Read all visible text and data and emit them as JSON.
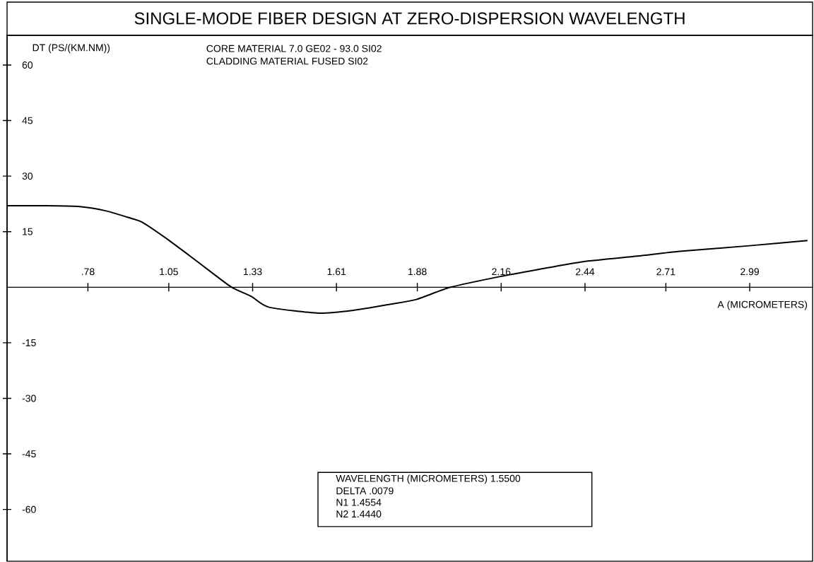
{
  "chart_data": {
    "type": "line",
    "title": "SINGLE-MODE FIBER DESIGN AT ZERO-DISPERSION WAVELENGTH",
    "xlabel": "A (MICROMETERS)",
    "ylabel": "DT (PS/(KM.NM))",
    "x": [
      0.51,
      0.629,
      0.747,
      0.841,
      0.912,
      0.96,
      1.038,
      1.118,
      1.196,
      1.26,
      1.326,
      1.385,
      1.551,
      1.669,
      1.788,
      1.877,
      1.991,
      2.157,
      2.284,
      2.433,
      2.615,
      2.757,
      2.989,
      3.183
    ],
    "values": [
      22.0,
      22.0,
      21.8,
      20.6,
      18.9,
      17.6,
      13.4,
      8.6,
      3.8,
      0.0,
      -2.5,
      -5.4,
      -7.0,
      -6.2,
      -4.6,
      -3.3,
      0.0,
      2.9,
      4.8,
      6.9,
      8.4,
      9.7,
      11.2,
      12.6
    ],
    "color": "#000000",
    "xlim": [
      0.51,
      3.2
    ],
    "ylim": [
      -74,
      68
    ],
    "xticks": [
      {
        "value": 0.78,
        "label": ".78"
      },
      1.05,
      1.33,
      1.61,
      1.88,
      2.16,
      2.44,
      2.71,
      2.99
    ],
    "yticks": [
      -60,
      -45,
      -30,
      -15,
      15,
      30,
      45,
      60
    ],
    "annotations": [
      "CORE MATERIAL 7.0 GE02 - 93.0 SI02",
      "CLADDING MATERIAL FUSED SI02",
      "WAVELENGTH (MICROMETERS) 1.5500",
      "DELTA .0079",
      "N1 1.4554",
      "N2 1.4440"
    ]
  }
}
